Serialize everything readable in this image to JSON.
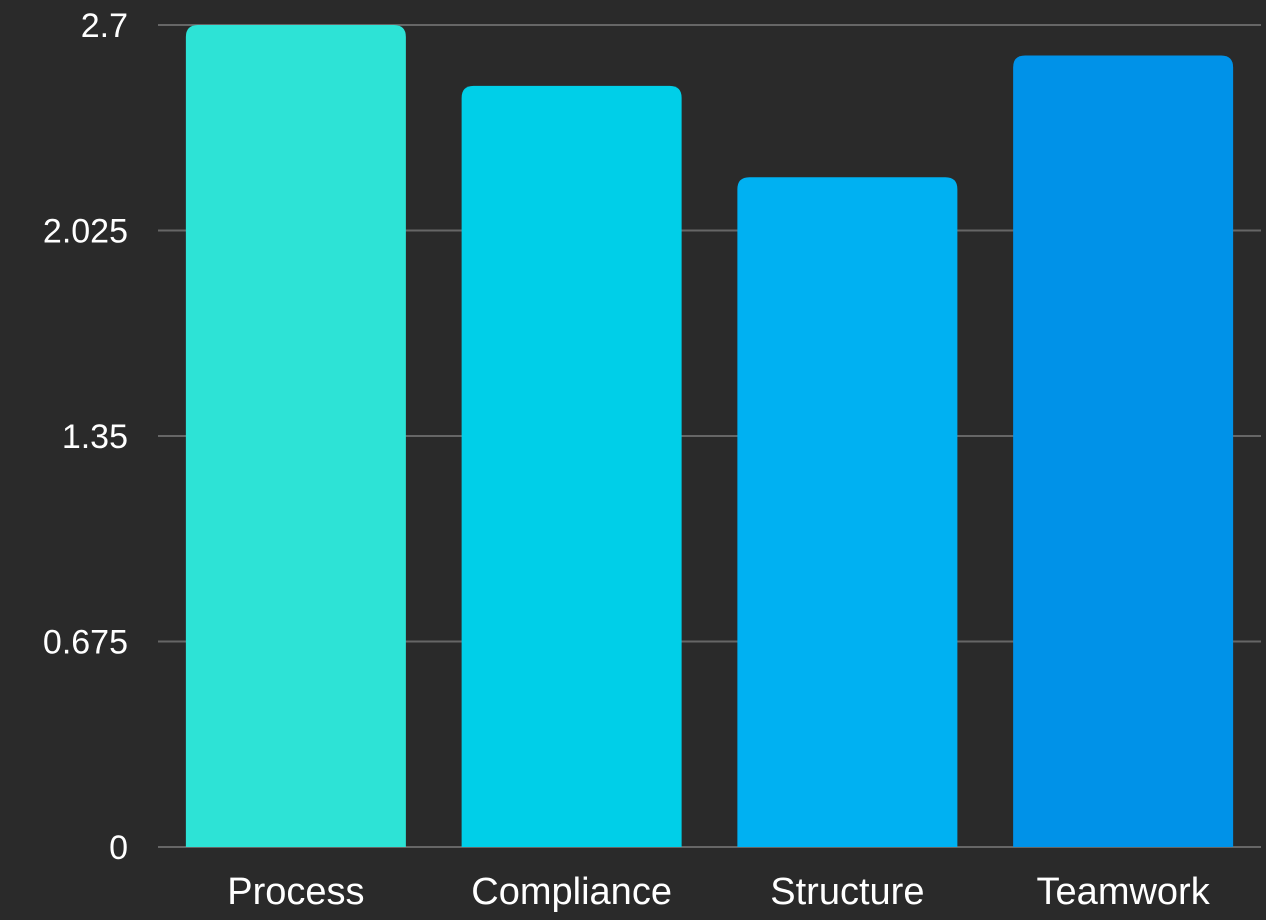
{
  "chart_data": {
    "type": "bar",
    "categories": [
      "Process",
      "Compliance",
      "Structure",
      "Teamwork"
    ],
    "values": [
      2.7,
      2.5,
      2.2,
      2.6
    ],
    "ylim": [
      0,
      2.7
    ],
    "yticks": [
      0,
      0.675,
      1.35,
      2.025,
      2.7
    ],
    "ytick_labels": [
      "0",
      "0.675",
      "1.35",
      "2.025",
      "2.7"
    ],
    "grid": true,
    "legend": "none",
    "title": "",
    "xlabel": "",
    "ylabel": "",
    "colors": [
      "#2de3d6",
      "#00cfe8",
      "#00b1f2",
      "#0092e8"
    ],
    "background": "#2a2a2a",
    "grid_color": "#666666"
  }
}
